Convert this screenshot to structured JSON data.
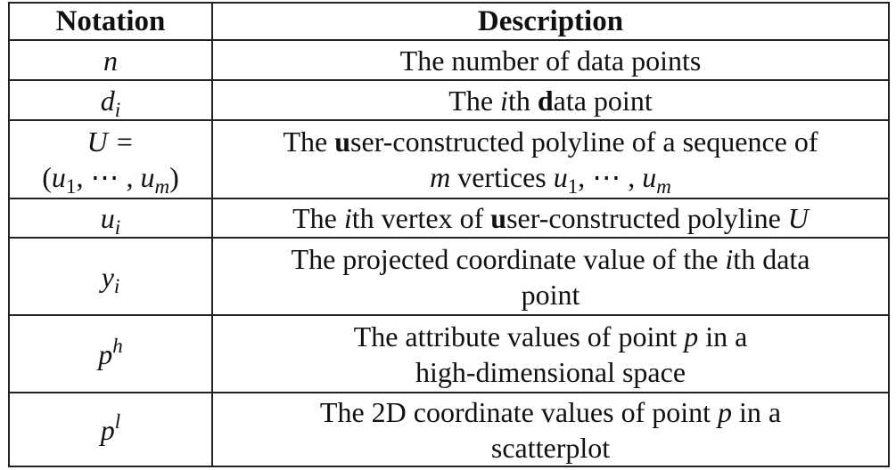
{
  "table": {
    "headers": {
      "notation": "Notation",
      "description": "Description"
    },
    "rows": [
      {
        "notation": "n",
        "description": "The number of data points"
      },
      {
        "notation": {
          "base": "d",
          "sub": "i"
        },
        "description": {
          "pre": "The ",
          "it": "i",
          "mid": "th ",
          "bold": "d",
          "post": "ata point"
        }
      },
      {
        "notation": {
          "line1": "U =",
          "line2_open": "(",
          "u": "u",
          "sub1": "1",
          "dots": ", ⋯ , ",
          "subm": "m",
          "line2_close": ")"
        },
        "description": {
          "pre": "The ",
          "bold": "u",
          "post": "ser-constructed polyline of a sequence of",
          "m": "m",
          "vertices": " vertices ",
          "u": "u",
          "sub1": "1",
          "dots": ", ⋯ , ",
          "subm": "m"
        }
      },
      {
        "notation": {
          "base": "u",
          "sub": "i"
        },
        "description": {
          "pre": "The ",
          "it": "i",
          "mid": "th vertex of ",
          "bold": "u",
          "post": "ser-constructed polyline ",
          "end": "U"
        }
      },
      {
        "notation": {
          "base": "y",
          "sub": "i"
        },
        "description": {
          "pre": "The projected coordinate value of the ",
          "it": "i",
          "post": "th data",
          "line2": "point"
        }
      },
      {
        "notation": {
          "base": "p",
          "sup": "h"
        },
        "description": {
          "pre": "The attribute values of point ",
          "it": "p",
          "post": " in a",
          "line2": "high-dimensional space"
        }
      },
      {
        "notation": {
          "base": "p",
          "sup": "l"
        },
        "description": {
          "pre": "The 2D coordinate values of point ",
          "it": "p",
          "post": " in a",
          "line2": "scatterplot"
        }
      }
    ]
  }
}
